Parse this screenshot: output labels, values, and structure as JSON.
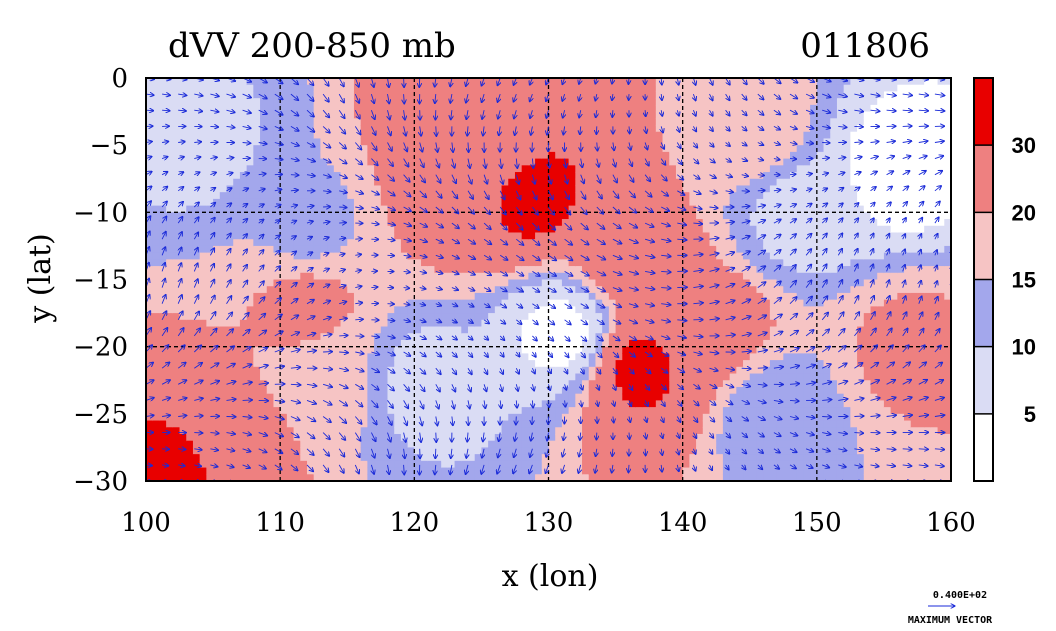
{
  "chart_data": {
    "type": "heatmap",
    "title": "dVV 200-850 mb",
    "date_code": "011806",
    "xlabel": "x (lon)",
    "ylabel": "y (lat)",
    "xlim": [
      100,
      160
    ],
    "ylim": [
      -30,
      0
    ],
    "x_ticks": [
      "100",
      "110",
      "120",
      "130",
      "140",
      "150",
      "160"
    ],
    "y_ticks": [
      "0",
      "−5",
      "−10",
      "−15",
      "−20",
      "−25",
      "−30"
    ],
    "grid": true,
    "colorbar": {
      "levels": [
        0,
        5,
        10,
        15,
        20,
        30,
        35
      ],
      "labels": [
        "5",
        "10",
        "15",
        "20",
        "30"
      ],
      "colors": [
        "#ffffff",
        "#dadcf4",
        "#a3a7ec",
        "#f6c4c4",
        "#ee8080",
        "#e80000"
      ]
    },
    "vector_legend": {
      "value": "0.400E+02",
      "label": "MAXIMUM VECTOR",
      "arrow_color": "#1a2ad8"
    },
    "vector_color": "#1a2ad8",
    "field_features": [
      {
        "lon": 102,
        "lat": -29.5,
        "value": 32
      },
      {
        "lon": 128.5,
        "lat": -8.5,
        "value": 32
      },
      {
        "lon": 137,
        "lat": -21.5,
        "value": 31
      },
      {
        "lon": 123,
        "lat": -7,
        "value": 24
      },
      {
        "lon": 126,
        "lat": -6,
        "value": 26
      },
      {
        "lon": 136,
        "lat": -13,
        "value": 24
      },
      {
        "lon": 142,
        "lat": -19,
        "value": 23
      },
      {
        "lon": 112,
        "lat": -17,
        "value": 21
      },
      {
        "lon": 107,
        "lat": -27,
        "value": 22
      },
      {
        "lon": 157,
        "lat": -20,
        "value": 21
      },
      {
        "lon": 145,
        "lat": -4,
        "value": 18
      },
      {
        "lon": 104,
        "lat": -5,
        "value": 9
      },
      {
        "lon": 121,
        "lat": -23,
        "value": 8
      },
      {
        "lon": 131,
        "lat": -19,
        "value": 4
      },
      {
        "lon": 149,
        "lat": -10,
        "value": 8
      },
      {
        "lon": 156,
        "lat": -7,
        "value": 3
      },
      {
        "lon": 147,
        "lat": -25,
        "value": 12
      },
      {
        "lon": 112,
        "lat": -11,
        "value": 14
      },
      {
        "lon": 114,
        "lat": -23,
        "value": 16
      }
    ]
  }
}
